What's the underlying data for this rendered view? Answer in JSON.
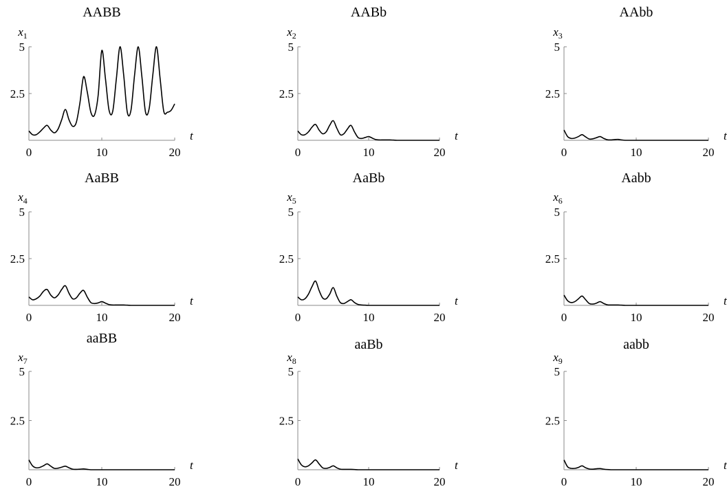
{
  "chart_data": [
    {
      "type": "line",
      "title": "AABB",
      "ylabel_var": "x",
      "ylabel_sub": "1",
      "xlabel": "t",
      "xlim": [
        0,
        20
      ],
      "ylim": [
        0,
        5
      ],
      "xticks": [
        "0",
        "10",
        "20"
      ],
      "yticks": [
        "2.5",
        "5"
      ],
      "x": [
        0,
        0.5,
        1,
        1.5,
        2,
        2.5,
        3,
        3.5,
        4,
        4.5,
        5,
        5.5,
        6,
        6.5,
        7,
        7.5,
        8,
        8.5,
        9,
        9.5,
        10,
        10.5,
        11,
        11.5,
        12,
        12.5,
        13,
        13.5,
        14,
        14.5,
        15,
        15.5,
        16,
        16.5,
        17,
        17.5,
        18,
        18.5,
        19,
        19.5,
        20
      ],
      "y": [
        0.5,
        0.3,
        0.3,
        0.45,
        0.65,
        0.8,
        0.55,
        0.4,
        0.6,
        1.1,
        1.65,
        1.1,
        0.75,
        0.95,
        2.0,
        3.4,
        2.6,
        1.5,
        1.35,
        2.4,
        4.8,
        3.3,
        1.6,
        1.55,
        3.3,
        5.0,
        3.5,
        1.5,
        1.6,
        3.5,
        5.0,
        3.4,
        1.5,
        1.7,
        3.5,
        5.0,
        3.3,
        1.55,
        1.5,
        1.6,
        1.95
      ]
    },
    {
      "type": "line",
      "title": "AABb",
      "ylabel_var": "x",
      "ylabel_sub": "2",
      "xlabel": "t",
      "xlim": [
        0,
        20
      ],
      "ylim": [
        0,
        5
      ],
      "xticks": [
        "0",
        "10",
        "20"
      ],
      "yticks": [
        "2.5",
        "5"
      ],
      "x": [
        0,
        0.5,
        1,
        1.5,
        2,
        2.5,
        3,
        3.5,
        4,
        4.5,
        5,
        5.5,
        6,
        6.5,
        7,
        7.5,
        8,
        8.5,
        9,
        9.5,
        10,
        10.5,
        11,
        11.5,
        12,
        12.5,
        13,
        13.5,
        14,
        15,
        16,
        17,
        18,
        19,
        20
      ],
      "y": [
        0.5,
        0.3,
        0.3,
        0.45,
        0.7,
        0.85,
        0.55,
        0.35,
        0.45,
        0.8,
        1.05,
        0.65,
        0.3,
        0.35,
        0.6,
        0.8,
        0.45,
        0.15,
        0.1,
        0.15,
        0.2,
        0.12,
        0.04,
        0.02,
        0.02,
        0.02,
        0.02,
        0.01,
        0,
        0,
        0,
        0,
        0,
        0,
        0
      ]
    },
    {
      "type": "line",
      "title": "AAbb",
      "ylabel_var": "x",
      "ylabel_sub": "3",
      "xlabel": "t",
      "xlim": [
        0,
        20
      ],
      "ylim": [
        0,
        5
      ],
      "xticks": [
        "0",
        "10",
        "20"
      ],
      "yticks": [
        "2.5",
        "5"
      ],
      "x": [
        0,
        0.5,
        1,
        1.5,
        2,
        2.5,
        3,
        3.5,
        4,
        4.5,
        5,
        5.5,
        6,
        6.5,
        7,
        7.5,
        8,
        8.5,
        9,
        10,
        11,
        12,
        13,
        14,
        15,
        16,
        17,
        18,
        19,
        20
      ],
      "y": [
        0.55,
        0.2,
        0.1,
        0.12,
        0.2,
        0.3,
        0.18,
        0.07,
        0.08,
        0.14,
        0.2,
        0.1,
        0.03,
        0.02,
        0.04,
        0.05,
        0.02,
        0,
        0,
        0,
        0,
        0,
        0,
        0,
        0,
        0,
        0,
        0,
        0,
        0
      ]
    },
    {
      "type": "line",
      "title": "AaBB",
      "ylabel_var": "x",
      "ylabel_sub": "4",
      "xlabel": "t",
      "xlim": [
        0,
        20
      ],
      "ylim": [
        0,
        5
      ],
      "xticks": [
        "0",
        "10",
        "20"
      ],
      "yticks": [
        "2.5",
        "5"
      ],
      "x": [
        0,
        0.5,
        1,
        1.5,
        2,
        2.5,
        3,
        3.5,
        4,
        4.5,
        5,
        5.5,
        6,
        6.5,
        7,
        7.5,
        8,
        8.5,
        9,
        9.5,
        10,
        10.5,
        11,
        11.5,
        12,
        12.5,
        13,
        13.5,
        14,
        15,
        16,
        17,
        18,
        19,
        20
      ],
      "y": [
        0.45,
        0.3,
        0.35,
        0.5,
        0.75,
        0.85,
        0.55,
        0.4,
        0.55,
        0.85,
        1.05,
        0.65,
        0.35,
        0.4,
        0.65,
        0.8,
        0.45,
        0.15,
        0.1,
        0.13,
        0.2,
        0.12,
        0.04,
        0.02,
        0.02,
        0.02,
        0.02,
        0.01,
        0,
        0,
        0,
        0,
        0,
        0,
        0
      ]
    },
    {
      "type": "line",
      "title": "AaBb",
      "ylabel_var": "x",
      "ylabel_sub": "5",
      "xlabel": "t",
      "xlim": [
        0,
        20
      ],
      "ylim": [
        0,
        5
      ],
      "xticks": [
        "0",
        "10",
        "20"
      ],
      "yticks": [
        "2.5",
        "5"
      ],
      "x": [
        0,
        0.5,
        1,
        1.5,
        2,
        2.5,
        3,
        3.5,
        4,
        4.5,
        5,
        5.5,
        6,
        6.5,
        7,
        7.5,
        8,
        8.5,
        9,
        9.5,
        10,
        11,
        12,
        13,
        14,
        15,
        16,
        17,
        18,
        19,
        20
      ],
      "y": [
        0.45,
        0.3,
        0.35,
        0.6,
        1.0,
        1.3,
        0.8,
        0.4,
        0.35,
        0.6,
        0.95,
        0.5,
        0.15,
        0.1,
        0.2,
        0.3,
        0.15,
        0.05,
        0.02,
        0.01,
        0,
        0,
        0,
        0,
        0,
        0,
        0,
        0,
        0,
        0,
        0
      ]
    },
    {
      "type": "line",
      "title": "Aabb",
      "ylabel_var": "x",
      "ylabel_sub": "6",
      "xlabel": "t",
      "xlim": [
        0,
        20
      ],
      "ylim": [
        0,
        5
      ],
      "xticks": [
        "0",
        "10",
        "20"
      ],
      "yticks": [
        "2.5",
        "5"
      ],
      "x": [
        0,
        0.5,
        1,
        1.5,
        2,
        2.5,
        3,
        3.5,
        4,
        4.5,
        5,
        5.5,
        6,
        6.5,
        7,
        7.5,
        8,
        8.5,
        9,
        10,
        11,
        12,
        13,
        14,
        15,
        16,
        17,
        18,
        19,
        20
      ],
      "y": [
        0.55,
        0.25,
        0.15,
        0.2,
        0.35,
        0.5,
        0.3,
        0.1,
        0.07,
        0.12,
        0.2,
        0.1,
        0.03,
        0.02,
        0.02,
        0.02,
        0.01,
        0,
        0,
        0,
        0,
        0,
        0,
        0,
        0,
        0,
        0,
        0,
        0,
        0
      ]
    },
    {
      "type": "line",
      "title": "aaBB",
      "ylabel_var": "x",
      "ylabel_sub": "7",
      "xlabel": "t",
      "xlim": [
        0,
        20
      ],
      "ylim": [
        0,
        5
      ],
      "xticks": [
        "0",
        "10",
        "20"
      ],
      "yticks": [
        "2.5",
        "5"
      ],
      "x": [
        0,
        0.5,
        1,
        1.5,
        2,
        2.5,
        3,
        3.5,
        4,
        4.5,
        5,
        5.5,
        6,
        6.5,
        7,
        7.5,
        8,
        8.5,
        9,
        10,
        11,
        12,
        13,
        14,
        15,
        16,
        17,
        18,
        19,
        20
      ],
      "y": [
        0.5,
        0.2,
        0.1,
        0.12,
        0.2,
        0.3,
        0.18,
        0.07,
        0.08,
        0.13,
        0.18,
        0.1,
        0.03,
        0.02,
        0.03,
        0.04,
        0.02,
        0,
        0,
        0,
        0,
        0,
        0,
        0,
        0,
        0,
        0,
        0,
        0,
        0
      ]
    },
    {
      "type": "line",
      "title": "aaBb",
      "ylabel_var": "x",
      "ylabel_sub": "8",
      "xlabel": "t",
      "xlim": [
        0,
        20
      ],
      "ylim": [
        0,
        5
      ],
      "xticks": [
        "0",
        "10",
        "20"
      ],
      "yticks": [
        "2.5",
        "5"
      ],
      "x": [
        0,
        0.5,
        1,
        1.5,
        2,
        2.5,
        3,
        3.5,
        4,
        4.5,
        5,
        5.5,
        6,
        6.5,
        7,
        7.5,
        8,
        8.5,
        9,
        10,
        11,
        12,
        13,
        14,
        15,
        16,
        17,
        18,
        19,
        20
      ],
      "y": [
        0.55,
        0.25,
        0.15,
        0.2,
        0.35,
        0.5,
        0.3,
        0.1,
        0.07,
        0.12,
        0.2,
        0.1,
        0.03,
        0.02,
        0.02,
        0.02,
        0.01,
        0,
        0,
        0,
        0,
        0,
        0,
        0,
        0,
        0,
        0,
        0,
        0,
        0
      ]
    },
    {
      "type": "line",
      "title": "aabb",
      "ylabel_var": "x",
      "ylabel_sub": "9",
      "xlabel": "t",
      "xlim": [
        0,
        20
      ],
      "ylim": [
        0,
        5
      ],
      "xticks": [
        "0",
        "10",
        "20"
      ],
      "yticks": [
        "2.5",
        "5"
      ],
      "x": [
        0,
        0.5,
        1,
        1.5,
        2,
        2.5,
        3,
        3.5,
        4,
        4.5,
        5,
        5.5,
        6,
        6.5,
        7,
        8,
        9,
        10,
        11,
        12,
        13,
        14,
        15,
        16,
        17,
        18,
        19,
        20
      ],
      "y": [
        0.5,
        0.15,
        0.07,
        0.07,
        0.12,
        0.2,
        0.1,
        0.04,
        0.03,
        0.05,
        0.06,
        0.03,
        0.01,
        0,
        0,
        0,
        0,
        0,
        0,
        0,
        0,
        0,
        0,
        0,
        0,
        0,
        0,
        0
      ]
    }
  ]
}
